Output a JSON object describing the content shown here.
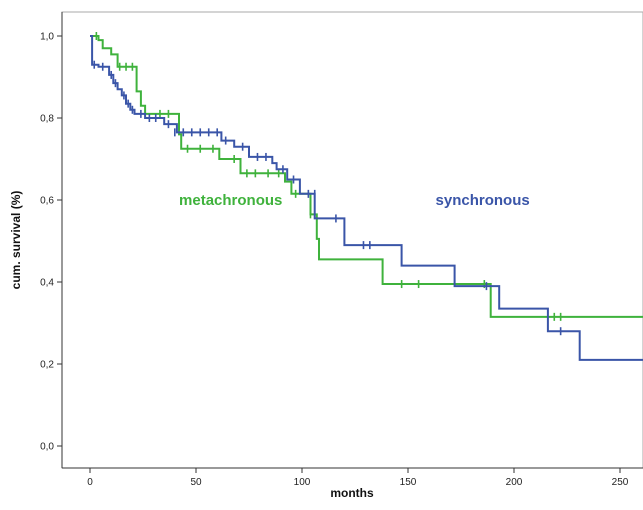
{
  "chart_data": {
    "type": "line",
    "title": "",
    "xlabel": "months",
    "ylabel": "cum. survival (%)",
    "xlim": [
      -12,
      263
    ],
    "ylim": [
      -0.05,
      1.1
    ],
    "xticks": [
      0,
      50,
      100,
      150,
      200,
      250
    ],
    "yticks": [
      0.0,
      0.2,
      0.4,
      0.6,
      0.8,
      1.0
    ],
    "xtick_labels": [
      "0",
      "50",
      "100",
      "150",
      "200",
      "250"
    ],
    "ytick_labels": [
      "0,0",
      "0,2",
      "0,4",
      "0,6",
      "0,8",
      "1,0"
    ],
    "grid": false,
    "series": [
      {
        "name": "metachronous",
        "color": "#3fb23c",
        "steps": [
          [
            0,
            1.0
          ],
          [
            4,
            0.99
          ],
          [
            6,
            0.97
          ],
          [
            10,
            0.955
          ],
          [
            13,
            0.925
          ],
          [
            22,
            0.865
          ],
          [
            24,
            0.83
          ],
          [
            26,
            0.81
          ],
          [
            42,
            0.76
          ],
          [
            43,
            0.725
          ],
          [
            61,
            0.7
          ],
          [
            71,
            0.665
          ],
          [
            92,
            0.645
          ],
          [
            95,
            0.615
          ],
          [
            104,
            0.565
          ],
          [
            107,
            0.505
          ],
          [
            108,
            0.455
          ],
          [
            138,
            0.395
          ],
          [
            189,
            0.315
          ],
          [
            263,
            0.315
          ]
        ],
        "censored": [
          [
            3,
            1.0
          ],
          [
            14,
            0.925
          ],
          [
            17,
            0.925
          ],
          [
            20,
            0.925
          ],
          [
            33,
            0.81
          ],
          [
            37,
            0.81
          ],
          [
            46,
            0.725
          ],
          [
            52,
            0.725
          ],
          [
            58,
            0.725
          ],
          [
            68,
            0.7
          ],
          [
            74,
            0.665
          ],
          [
            78,
            0.665
          ],
          [
            84,
            0.665
          ],
          [
            89,
            0.665
          ],
          [
            97,
            0.615
          ],
          [
            104,
            0.565
          ],
          [
            147,
            0.395
          ],
          [
            155,
            0.395
          ],
          [
            186,
            0.395
          ],
          [
            219,
            0.315
          ],
          [
            222,
            0.315
          ]
        ]
      },
      {
        "name": "synchronous",
        "color": "#3a55a8",
        "steps": [
          [
            0,
            1.0
          ],
          [
            1,
            0.93
          ],
          [
            4,
            0.925
          ],
          [
            9,
            0.905
          ],
          [
            11,
            0.885
          ],
          [
            13,
            0.87
          ],
          [
            15,
            0.855
          ],
          [
            17,
            0.835
          ],
          [
            19,
            0.82
          ],
          [
            21,
            0.81
          ],
          [
            26,
            0.8
          ],
          [
            35,
            0.785
          ],
          [
            41,
            0.765
          ],
          [
            62,
            0.745
          ],
          [
            68,
            0.73
          ],
          [
            75,
            0.705
          ],
          [
            86,
            0.69
          ],
          [
            88,
            0.675
          ],
          [
            93,
            0.65
          ],
          [
            99,
            0.615
          ],
          [
            106,
            0.555
          ],
          [
            120,
            0.49
          ],
          [
            147,
            0.44
          ],
          [
            172,
            0.39
          ],
          [
            193,
            0.335
          ],
          [
            216,
            0.28
          ],
          [
            231,
            0.21
          ],
          [
            263,
            0.21
          ]
        ],
        "censored": [
          [
            2,
            0.93
          ],
          [
            6,
            0.925
          ],
          [
            10,
            0.905
          ],
          [
            12,
            0.885
          ],
          [
            16,
            0.855
          ],
          [
            18,
            0.835
          ],
          [
            20,
            0.82
          ],
          [
            24,
            0.81
          ],
          [
            28,
            0.8
          ],
          [
            31,
            0.8
          ],
          [
            37,
            0.785
          ],
          [
            40,
            0.765
          ],
          [
            44,
            0.765
          ],
          [
            48,
            0.765
          ],
          [
            52,
            0.765
          ],
          [
            56,
            0.765
          ],
          [
            60,
            0.765
          ],
          [
            64,
            0.745
          ],
          [
            72,
            0.73
          ],
          [
            79,
            0.705
          ],
          [
            83,
            0.705
          ],
          [
            91,
            0.675
          ],
          [
            96,
            0.65
          ],
          [
            103,
            0.615
          ],
          [
            106,
            0.615
          ],
          [
            116,
            0.555
          ],
          [
            129,
            0.49
          ],
          [
            132,
            0.49
          ],
          [
            187,
            0.39
          ],
          [
            222,
            0.28
          ]
        ]
      }
    ],
    "annotations": [
      {
        "text": "metachronous",
        "x": 42,
        "y": 0.6,
        "color": "#3fb23c"
      },
      {
        "text": "synchronous",
        "x": 163,
        "y": 0.6,
        "color": "#3a55a8"
      }
    ]
  }
}
